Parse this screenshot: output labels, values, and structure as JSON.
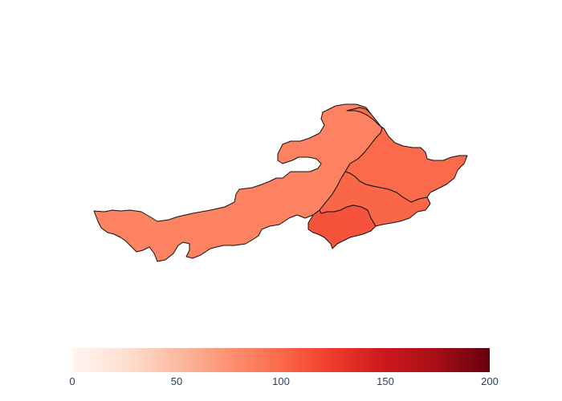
{
  "map": {
    "colorscale": "Reds",
    "regions": [
      {
        "name": "inner-mongolia",
        "value": 85
      },
      {
        "name": "heilongjiang",
        "value": 100
      },
      {
        "name": "jilin",
        "value": 102
      },
      {
        "name": "liaoning",
        "value": 112
      }
    ],
    "border_color": "#111111"
  },
  "colorbar": {
    "min": 0,
    "max": 200,
    "ticks": [
      "0",
      "50",
      "100",
      "150",
      "200"
    ],
    "colors": [
      "#fff5f0",
      "#fee0d2",
      "#fcbba1",
      "#fc9272",
      "#fb6a4a",
      "#ef3b2c",
      "#cb181d",
      "#a50f15",
      "#67000d"
    ]
  }
}
